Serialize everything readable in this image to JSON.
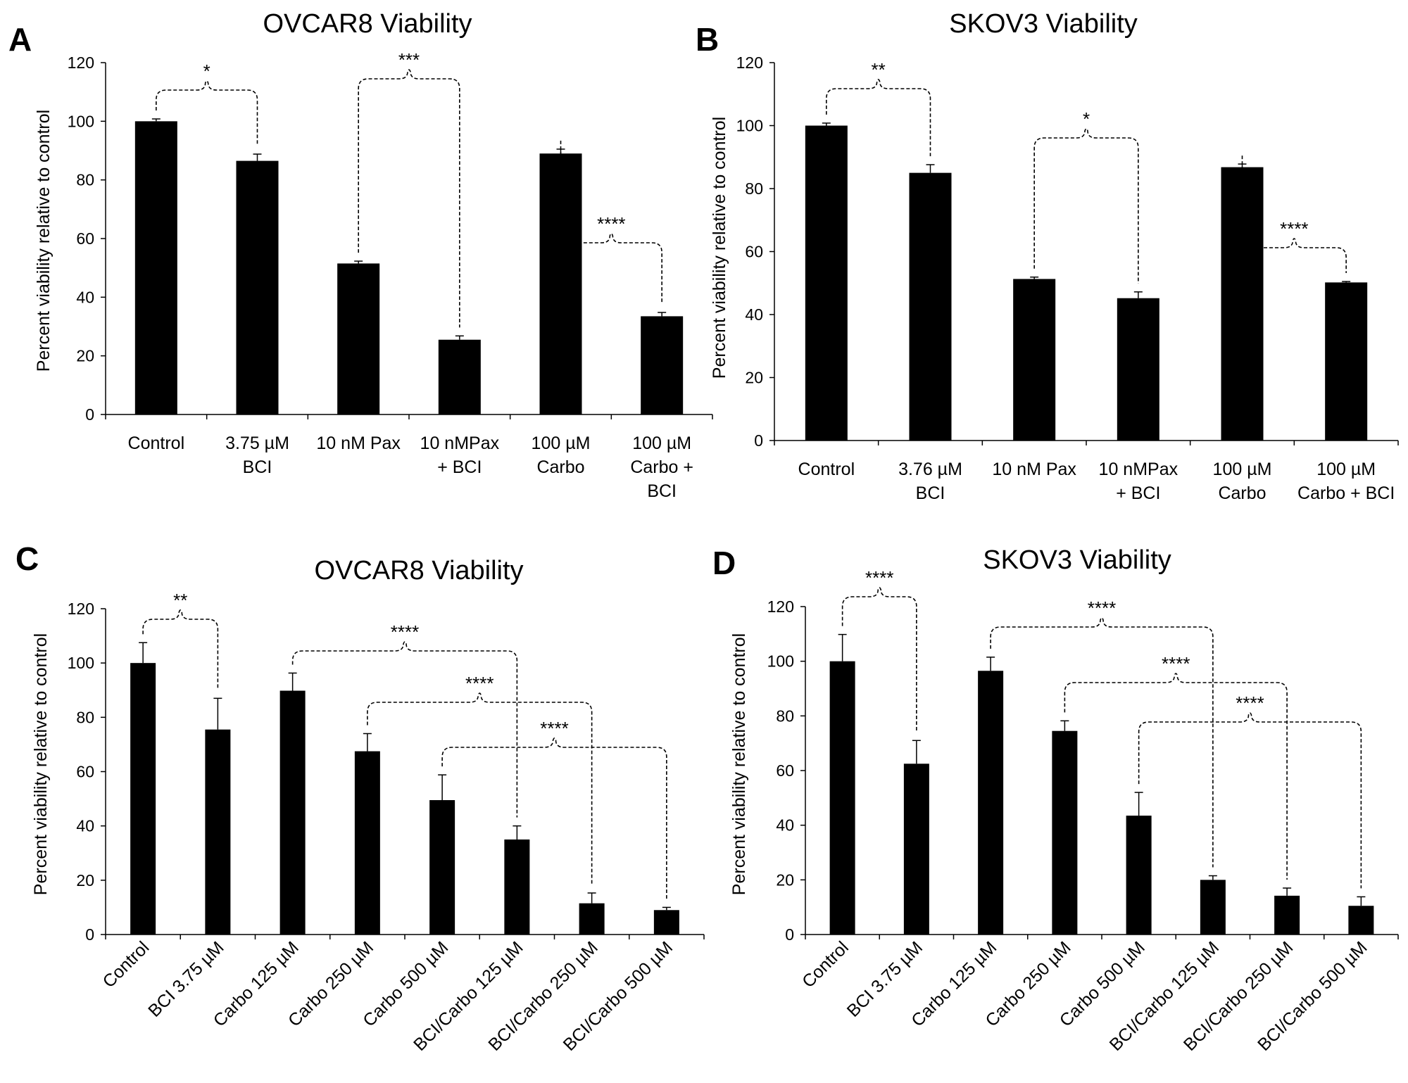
{
  "chart_data": [
    {
      "panel": "A",
      "type": "bar",
      "title": "OVCAR8 Viability",
      "ylabel": "Percent viability relative to control",
      "ylim": [
        0,
        120
      ],
      "yticks": [
        0,
        20,
        40,
        60,
        80,
        100,
        120
      ],
      "categories": [
        [
          "Control"
        ],
        [
          "3.75 µM",
          "BCI"
        ],
        [
          "10 nM Pax"
        ],
        [
          "10 nMPax",
          "+ BCI"
        ],
        [
          "100 µM",
          "Carbo"
        ],
        [
          "100 µM",
          "Carbo +",
          "BCI"
        ]
      ],
      "values": [
        100,
        86.5,
        51.5,
        25.5,
        89,
        33.5
      ],
      "errors": [
        0.8,
        2.3,
        0.8,
        1.3,
        1.5,
        1.3
      ],
      "significance": [
        {
          "from": 0,
          "to": 1,
          "label": "*"
        },
        {
          "from": 2,
          "to": 3,
          "label": "***"
        },
        {
          "from": 4,
          "to": 5,
          "label": "****"
        }
      ]
    },
    {
      "panel": "B",
      "type": "bar",
      "title": "SKOV3 Viability",
      "ylabel": "Percent viability relative to control",
      "ylim": [
        0,
        120
      ],
      "yticks": [
        0,
        20,
        40,
        60,
        80,
        100,
        120
      ],
      "categories": [
        [
          "Control"
        ],
        [
          "3.76 µM",
          "BCI"
        ],
        [
          "10 nM Pax"
        ],
        [
          "10 nMPax",
          "+ BCI"
        ],
        [
          "100 µM",
          "Carbo"
        ],
        [
          "100 µM",
          "Carbo + BCI"
        ]
      ],
      "values": [
        100,
        85,
        51.3,
        45.2,
        86.8,
        50.2
      ],
      "errors": [
        0.8,
        2.6,
        0.6,
        2.0,
        1.0,
        0.3
      ],
      "significance": [
        {
          "from": 0,
          "to": 1,
          "label": "**"
        },
        {
          "from": 2,
          "to": 3,
          "label": "*"
        },
        {
          "from": 4,
          "to": 5,
          "label": "****"
        }
      ]
    },
    {
      "panel": "C",
      "type": "bar",
      "title": "OVCAR8 Viability",
      "ylabel": "Percent viability relative to control",
      "ylim": [
        0,
        120
      ],
      "yticks": [
        0,
        20,
        40,
        60,
        80,
        100,
        120
      ],
      "categories": [
        "Control",
        "BCI 3.75 µM",
        "Carbo 125 µM",
        "Carbo 250 µM",
        "Carbo 500 µM",
        "BCI/Carbo 125 µM",
        "BCI/Carbo 250 µM",
        "BCI/Carbo 500 µM"
      ],
      "values": [
        100,
        75.5,
        89.8,
        67.5,
        49.5,
        35,
        11.5,
        9
      ],
      "errors": [
        7.5,
        11.5,
        6.5,
        6.5,
        9.3,
        5,
        3.8,
        1
      ],
      "significance": [
        {
          "from": 0,
          "to": 1,
          "label": "**"
        },
        {
          "from": 2,
          "to": 5,
          "label": "****"
        },
        {
          "from": 3,
          "to": 6,
          "label": "****"
        },
        {
          "from": 4,
          "to": 7,
          "label": "****"
        }
      ]
    },
    {
      "panel": "D",
      "type": "bar",
      "title": "SKOV3 Viability",
      "ylabel": "Percent viability relative to control",
      "ylim": [
        0,
        120
      ],
      "yticks": [
        0,
        20,
        40,
        60,
        80,
        100,
        120
      ],
      "categories": [
        "Control",
        "BCI 3.75 µM",
        "Carbo 125 µM",
        "Carbo 250 µM",
        "Carbo 500 µM",
        "BCI/Carbo 125 µM",
        "BCI/Carbo 250 µM",
        "BCI/Carbo 500 µM"
      ],
      "values": [
        100,
        62.5,
        96.5,
        74.5,
        43.5,
        20,
        14.2,
        10.5
      ],
      "errors": [
        9.8,
        8.5,
        5,
        3.7,
        8.5,
        1.5,
        2.8,
        3.3
      ],
      "significance": [
        {
          "from": 0,
          "to": 1,
          "label": "****"
        },
        {
          "from": 2,
          "to": 5,
          "label": "****"
        },
        {
          "from": 3,
          "to": 6,
          "label": "****"
        },
        {
          "from": 4,
          "to": 7,
          "label": "****"
        }
      ]
    }
  ]
}
